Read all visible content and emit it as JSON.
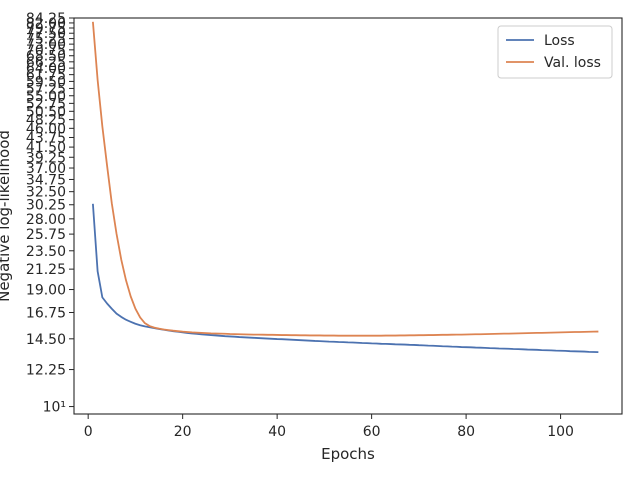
{
  "chart_data": {
    "type": "line",
    "title": "",
    "xlabel": "Epochs",
    "ylabel": "Negative log-likelihood",
    "yscale": "log",
    "xlim": [
      -3,
      113
    ],
    "ylim": [
      9.6,
      84.25
    ],
    "grid": false,
    "legend_position": "top-right",
    "x_ticks": [
      0,
      20,
      40,
      60,
      80,
      100
    ],
    "x_tick_labels": [
      "0",
      "20",
      "40",
      "60",
      "80",
      "100"
    ],
    "y_ticks": [
      10,
      12.25,
      14.5,
      16.75,
      19.0,
      21.25,
      23.5,
      25.75,
      28.0,
      30.25,
      32.5,
      34.75,
      37.0,
      39.25,
      41.5,
      43.75,
      46.0,
      48.25,
      50.5,
      52.75,
      55.0,
      57.25,
      59.5,
      61.75,
      64.0,
      66.25,
      68.5,
      70.75,
      73.0,
      75.25,
      77.5,
      79.75,
      82.0,
      84.25
    ],
    "y_tick_labels": [
      "10¹",
      "12.25",
      "14.50",
      "16.75",
      "19.00",
      "21.25",
      "23.50",
      "25.75",
      "28.00",
      "30.25",
      "32.50",
      "34.75",
      "37.00",
      "39.25",
      "41.50",
      "43.75",
      "46.00",
      "48.25",
      "50.50",
      "52.75",
      "55.00",
      "57.25",
      "59.50",
      "61.75",
      "64.00",
      "66.25",
      "68.50",
      "70.75",
      "73.00",
      "75.25",
      "77.50",
      "79.75",
      "82.00",
      "84.25"
    ],
    "x": [
      1,
      2,
      3,
      4,
      5,
      6,
      7,
      8,
      9,
      10,
      11,
      12,
      13,
      14,
      15,
      16,
      17,
      18,
      19,
      20,
      21,
      22,
      23,
      24,
      25,
      26,
      27,
      28,
      29,
      30,
      31,
      32,
      33,
      34,
      35,
      36,
      37,
      38,
      39,
      40,
      41,
      42,
      43,
      44,
      45,
      46,
      47,
      48,
      49,
      50,
      51,
      52,
      53,
      54,
      55,
      56,
      57,
      58,
      59,
      60,
      61,
      62,
      63,
      64,
      65,
      66,
      67,
      68,
      69,
      70,
      71,
      72,
      73,
      74,
      75,
      76,
      77,
      78,
      79,
      80,
      81,
      82,
      83,
      84,
      85,
      86,
      87,
      88,
      89,
      90,
      91,
      92,
      93,
      94,
      95,
      96,
      97,
      98,
      99,
      100,
      101,
      102,
      103,
      104,
      105,
      106,
      107,
      108
    ],
    "series": [
      {
        "name": "Loss",
        "color": "#4c72b0",
        "values": [
          30.4,
          21.0,
          18.2,
          17.6,
          17.1,
          16.65,
          16.35,
          16.1,
          15.92,
          15.75,
          15.62,
          15.52,
          15.45,
          15.38,
          15.3,
          15.24,
          15.18,
          15.12,
          15.07,
          15.02,
          14.97,
          14.93,
          14.9,
          14.86,
          14.83,
          14.8,
          14.77,
          14.74,
          14.71,
          14.69,
          14.67,
          14.64,
          14.62,
          14.6,
          14.58,
          14.56,
          14.54,
          14.52,
          14.5,
          14.48,
          14.47,
          14.45,
          14.43,
          14.41,
          14.39,
          14.37,
          14.35,
          14.33,
          14.32,
          14.3,
          14.28,
          14.27,
          14.25,
          14.24,
          14.22,
          14.21,
          14.19,
          14.17,
          14.16,
          14.14,
          14.13,
          14.11,
          14.1,
          14.09,
          14.07,
          14.06,
          14.05,
          14.03,
          14.02,
          14.0,
          13.99,
          13.97,
          13.96,
          13.94,
          13.92,
          13.91,
          13.89,
          13.88,
          13.86,
          13.85,
          13.84,
          13.82,
          13.81,
          13.8,
          13.78,
          13.77,
          13.75,
          13.74,
          13.73,
          13.71,
          13.7,
          13.69,
          13.67,
          13.66,
          13.65,
          13.63,
          13.62,
          13.61,
          13.59,
          13.58,
          13.57,
          13.55,
          13.54,
          13.53,
          13.52,
          13.5,
          13.49,
          13.48
        ]
      },
      {
        "name": "Val. loss",
        "color": "#dd8452",
        "values": [
          82.5,
          60.0,
          46.5,
          37.5,
          30.5,
          25.8,
          22.4,
          20.0,
          18.3,
          17.1,
          16.3,
          15.8,
          15.55,
          15.42,
          15.33,
          15.26,
          15.21,
          15.16,
          15.12,
          15.08,
          15.05,
          15.02,
          15.0,
          14.98,
          14.96,
          14.94,
          14.93,
          14.92,
          14.91,
          14.89,
          14.88,
          14.87,
          14.86,
          14.85,
          14.84,
          14.84,
          14.83,
          14.82,
          14.82,
          14.81,
          14.8,
          14.8,
          14.79,
          14.79,
          14.78,
          14.78,
          14.77,
          14.77,
          14.77,
          14.76,
          14.76,
          14.76,
          14.75,
          14.75,
          14.75,
          14.75,
          14.75,
          14.75,
          14.75,
          14.75,
          14.75,
          14.75,
          14.76,
          14.76,
          14.76,
          14.77,
          14.77,
          14.78,
          14.78,
          14.79,
          14.79,
          14.8,
          14.8,
          14.81,
          14.82,
          14.82,
          14.83,
          14.84,
          14.84,
          14.85,
          14.86,
          14.87,
          14.87,
          14.88,
          14.89,
          14.9,
          14.91,
          14.92,
          14.92,
          14.93,
          14.94,
          14.95,
          14.96,
          14.97,
          14.98,
          14.98,
          14.99,
          15.0,
          15.01,
          15.02,
          15.03,
          15.04,
          15.05,
          15.05,
          15.06,
          15.07,
          15.08,
          15.09
        ]
      }
    ]
  }
}
